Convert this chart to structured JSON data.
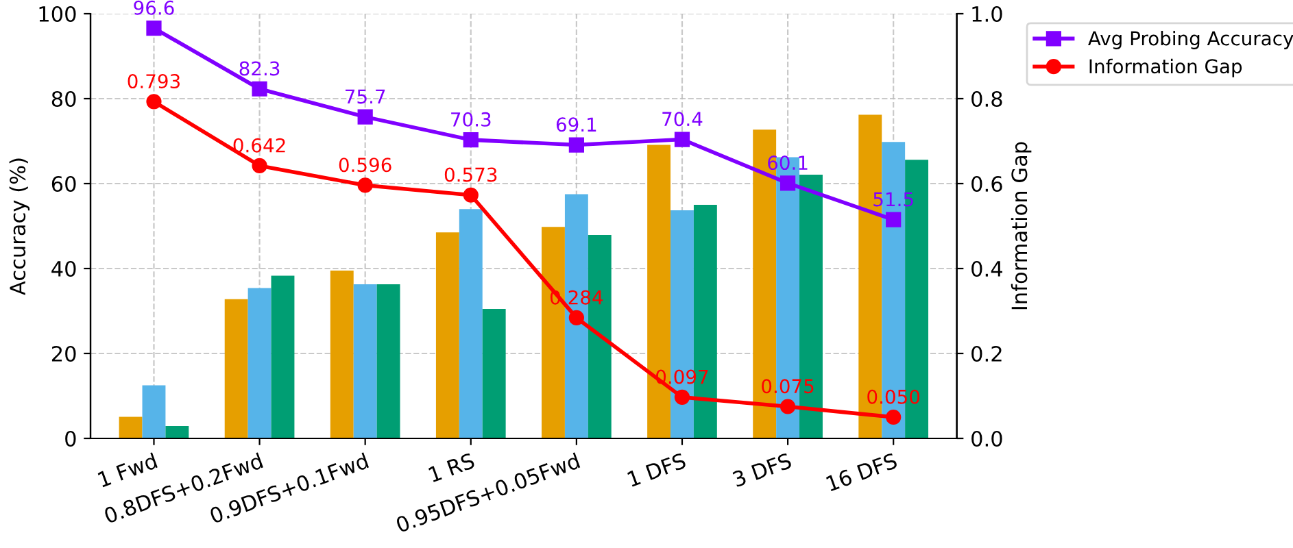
{
  "chart_data": {
    "type": "bar",
    "categories": [
      "1 Fwd",
      "0.8DFS+0.2Fwd",
      "0.9DFS+0.1Fwd",
      "1 RS",
      "0.95DFS+0.05Fwd",
      "1 DFS",
      "3 DFS",
      "16 DFS"
    ],
    "ylabel": "Accuracy (%)",
    "y2label": "Information Gap",
    "ylim": [
      0,
      100
    ],
    "yticks": [
      0,
      20,
      40,
      60,
      80,
      100
    ],
    "y2lim": [
      0.0,
      1.0
    ],
    "y2ticks": [
      {
        "value": 0,
        "label": "0.0"
      },
      {
        "value": 0.2,
        "label": "0.2"
      },
      {
        "value": 0.4,
        "label": "0.4"
      },
      {
        "value": 0.6,
        "label": "0.6"
      },
      {
        "value": 0.8,
        "label": "0.8"
      },
      {
        "value": 1,
        "label": "1.0"
      }
    ],
    "grid": true,
    "legend": "top right",
    "series": [
      {
        "color": "#e69f00",
        "values": [
          5.1,
          32.8,
          39.5,
          48.5,
          49.8,
          69.1,
          72.7,
          76.2
        ]
      },
      {
        "color": "#56b4e9",
        "values": [
          12.5,
          35.4,
          36.3,
          54.0,
          57.5,
          53.7,
          66.2,
          69.8
        ]
      },
      {
        "color": "#009e73",
        "values": [
          2.9,
          38.3,
          36.3,
          30.5,
          47.9,
          55.0,
          62.1,
          65.6
        ]
      },
      {
        "type": "line",
        "name": "Avg Probing Accuracy",
        "color": "#8000ff",
        "marker": "square",
        "values": [
          96.6,
          82.3,
          75.7,
          70.3,
          69.1,
          70.4,
          60.1,
          51.5
        ],
        "value_labels": [
          "96.6",
          "82.3",
          "75.7",
          "70.3",
          "69.1",
          "70.4",
          "60.1",
          "51.5"
        ]
      },
      {
        "type": "line",
        "name": "Information Gap",
        "axis": "y2",
        "color": "#ff0000",
        "marker": "circle",
        "values": [
          0.793,
          0.642,
          0.596,
          0.573,
          0.284,
          0.097,
          0.075,
          0.05
        ],
        "value_labels": [
          "0.793",
          "0.642",
          "0.596",
          "0.573",
          "0.284",
          "0.097",
          "0.075",
          "0.050"
        ]
      }
    ]
  }
}
